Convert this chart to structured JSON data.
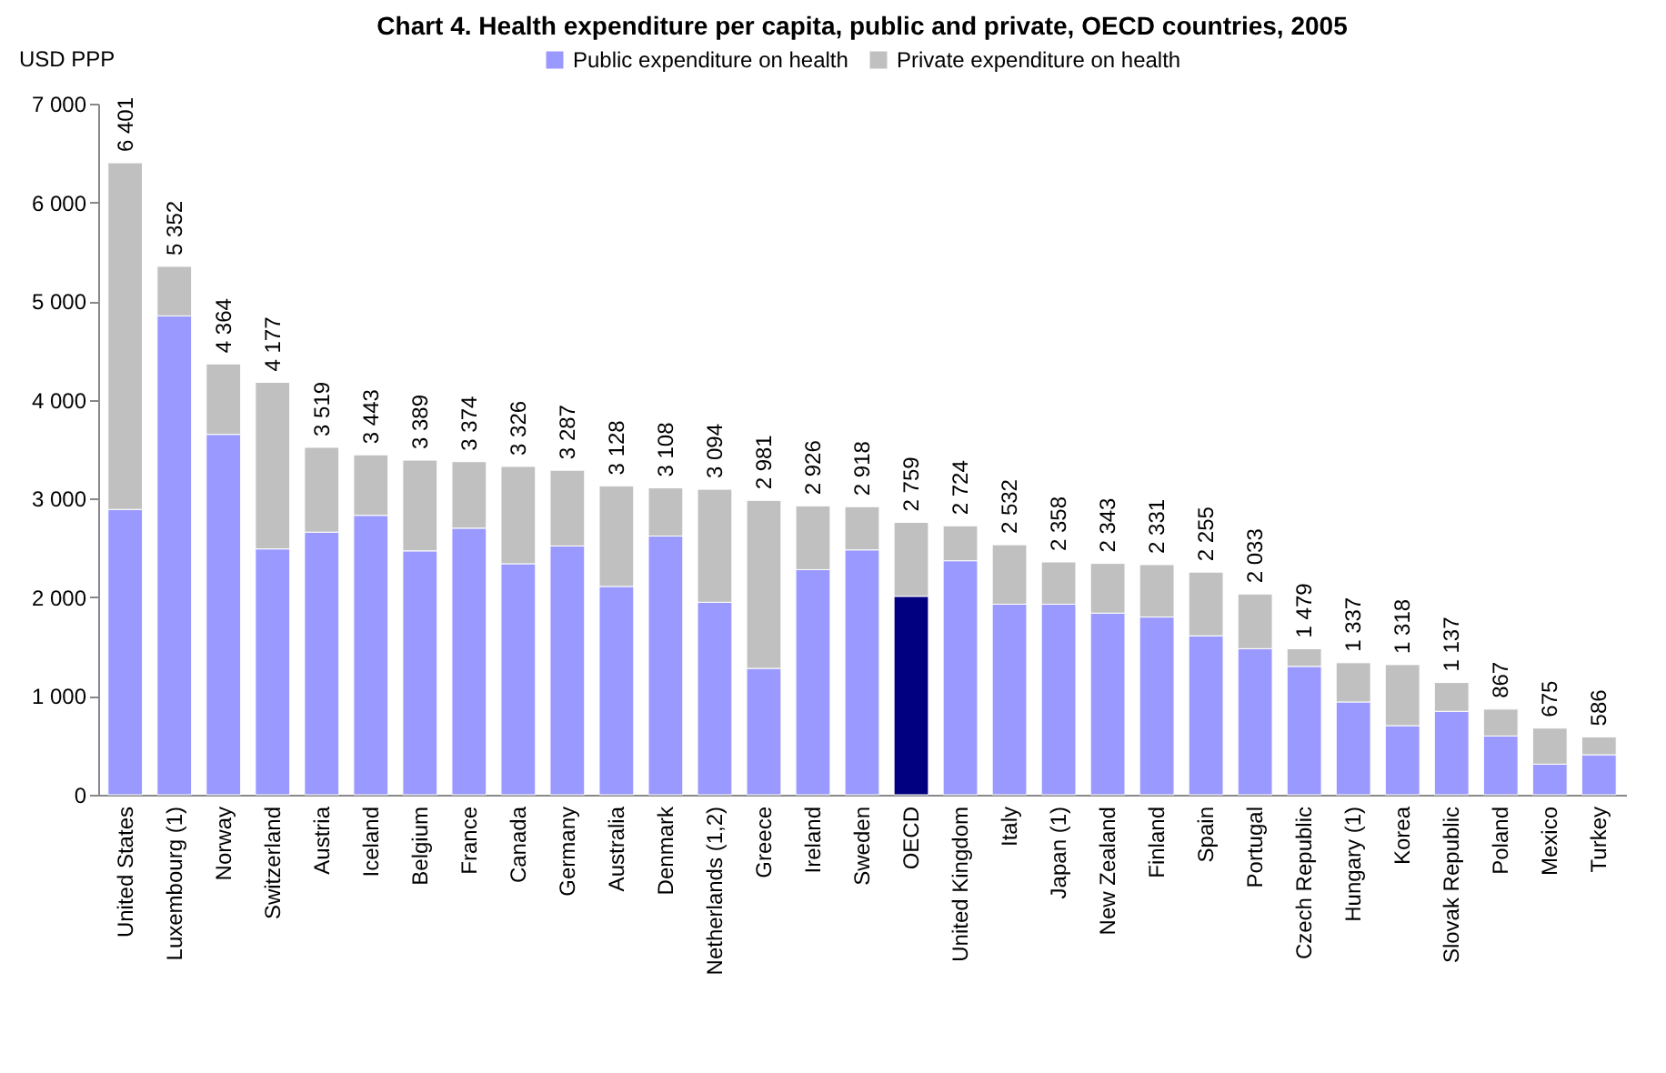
{
  "chart_data": {
    "type": "bar",
    "title": "Chart 4. Health expenditure per capita, public and private, OECD countries, 2005",
    "ylabel": "USD PPP",
    "stacked": true,
    "legend": "top",
    "grid": false,
    "categories": [
      "United States",
      "Luxembourg (1)",
      "Norway",
      "Switzerland",
      "Austria",
      "Iceland",
      "Belgium",
      "France",
      "Canada",
      "Germany",
      "Australia",
      "Denmark",
      "Netherlands (1,2)",
      "Greece",
      "Ireland",
      "Sweden",
      "OECD",
      "United Kingdom",
      "Italy",
      "Japan (1)",
      "New Zealand",
      "Finland",
      "Spain",
      "Portugal",
      "Czech Republic",
      "Hungary (1)",
      "Korea",
      "Slovak Republic",
      "Poland",
      "Mexico",
      "Turkey"
    ],
    "series": [
      {
        "name": "Public expenditure on health",
        "color": "#9999ff",
        "values": [
          2890,
          4850,
          3650,
          2490,
          2660,
          2830,
          2470,
          2700,
          2340,
          2520,
          2110,
          2620,
          1950,
          1280,
          2280,
          2480,
          2010,
          2370,
          1930,
          1930,
          1840,
          1800,
          1610,
          1480,
          1300,
          940,
          700,
          845,
          595,
          310,
          405
        ],
        "colors": [
          "#9999ff",
          "#9999ff",
          "#9999ff",
          "#9999ff",
          "#9999ff",
          "#9999ff",
          "#9999ff",
          "#9999ff",
          "#9999ff",
          "#9999ff",
          "#9999ff",
          "#9999ff",
          "#9999ff",
          "#9999ff",
          "#9999ff",
          "#9999ff",
          "#000080",
          "#9999ff",
          "#9999ff",
          "#9999ff",
          "#9999ff",
          "#9999ff",
          "#9999ff",
          "#9999ff",
          "#9999ff",
          "#9999ff",
          "#9999ff",
          "#9999ff",
          "#9999ff",
          "#9999ff",
          "#9999ff"
        ]
      },
      {
        "name": "Private expenditure on health",
        "color": "#c0c0c0",
        "values": [
          3511,
          502,
          714,
          1687,
          859,
          613,
          919,
          674,
          986,
          767,
          1018,
          488,
          1144,
          1701,
          646,
          438,
          749,
          354,
          602,
          428,
          503,
          531,
          645,
          553,
          179,
          397,
          618,
          292,
          272,
          365,
          181
        ]
      }
    ],
    "totals": [
      "6 401",
      "5 352",
      "4 364",
      "4 177",
      "3 519",
      "3 443",
      "3 389",
      "3 374",
      "3 326",
      "3 287",
      "3 128",
      "3 108",
      "3 094",
      "2 981",
      "2 926",
      "2 918",
      "2 759",
      "2 724",
      "2 532",
      "2 358",
      "2 343",
      "2 331",
      "2 255",
      "2 033",
      "1 479",
      "1 337",
      "1 318",
      "1 137",
      "867",
      "675",
      "586"
    ],
    "ylim": [
      0,
      7000
    ],
    "yticks": [
      0,
      {
        "value": 1000,
        "label": "1 000"
      },
      {
        "value": 2000,
        "label": "2 000"
      },
      {
        "value": 3000,
        "label": "3 000"
      },
      {
        "value": 4000,
        "label": "4 000"
      },
      {
        "value": 5000,
        "label": "5 000"
      },
      {
        "value": 6000,
        "label": "6 000"
      },
      {
        "value": 7000,
        "label": "7 000"
      }
    ]
  }
}
